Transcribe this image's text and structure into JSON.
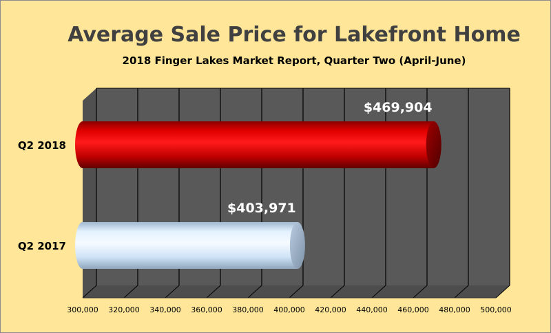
{
  "chart_data": {
    "type": "bar",
    "orientation": "horizontal",
    "title": "Average Sale Price for Lakefront Home",
    "subtitle": "2018 Finger Lakes Market Report, Quarter Two (April-June)",
    "categories": [
      "Q2 2018",
      "Q2 2017"
    ],
    "values": [
      469904,
      403971
    ],
    "data_labels": [
      "$469,904",
      "$403,971"
    ],
    "bar_colors": [
      "#c00000",
      "#cfe8ff"
    ],
    "xlim": [
      300000,
      500000
    ],
    "xticks": [
      "300,000",
      "320,000",
      "340,000",
      "360,000",
      "380,000",
      "400,000",
      "420,000",
      "440,000",
      "460,000",
      "480,000",
      "500,000"
    ],
    "grid": true,
    "legend": "none",
    "colors": {
      "background": "#ffe699",
      "plot_area": "#595959",
      "gridline": "#000000",
      "title_text": "#404040",
      "label_text": "#000000",
      "data_label_text": "#ffffff"
    }
  }
}
